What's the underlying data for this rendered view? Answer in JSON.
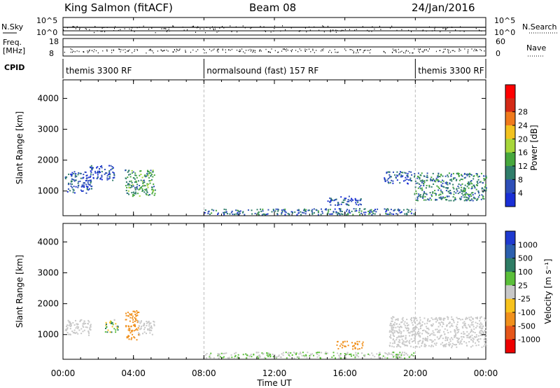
{
  "header": {
    "station": "King Salmon (fitACF)",
    "beam": "Beam 08",
    "date": "24/Jan/2016"
  },
  "strip_labels": {
    "nsky": "N.Sky",
    "freq": "Freq.",
    "freq_unit": "[MHz]",
    "cpid": "CPID",
    "nsearch": "N.Search",
    "nave": "Nave",
    "nsky_ticks": [
      "10^5",
      "10^0"
    ],
    "freq_ticks": [
      "18",
      "8"
    ],
    "nsearch_ticks": [
      "10^5",
      "10^0"
    ],
    "nave_ticks": [
      "60",
      "0"
    ]
  },
  "cpid_segments": [
    {
      "label": "themis 3300 RF",
      "start_h": 0,
      "end_h": 8
    },
    {
      "label": "normalsound (fast) 157 RF",
      "start_h": 8,
      "end_h": 20
    },
    {
      "label": "themis 3300 RF",
      "start_h": 20,
      "end_h": 24
    }
  ],
  "axes": {
    "xlabel": "Time UT",
    "x_ticks": [
      "00:00",
      "04:00",
      "08:00",
      "12:00",
      "16:00",
      "20:00",
      "00:00"
    ],
    "ylabel": "Slant Range [km]",
    "y_ticks": [
      "1000",
      "2000",
      "3000",
      "4000"
    ]
  },
  "power_colorbar": {
    "label": "Power [dB]",
    "ticks": [
      "4",
      "8",
      "12",
      "16",
      "20",
      "24",
      "28"
    ],
    "colors": [
      "#1a2fd6",
      "#2e4fb8",
      "#2f7d6a",
      "#47a83d",
      "#a7d63a",
      "#f2c21f",
      "#f07a1c",
      "#d42a16",
      "#ff0000"
    ]
  },
  "velocity_colorbar": {
    "label": "Velocity [m s⁻¹]",
    "ticks": [
      "1000",
      "500",
      "100",
      "25",
      "-25",
      "-100",
      "-500",
      "-1000"
    ],
    "colors": [
      "#1f3ad0",
      "#2b5fae",
      "#2e7c64",
      "#5bbf3a",
      "#c8c8c8",
      "#f7c21c",
      "#f0901c",
      "#e5561a",
      "#ee0000"
    ]
  },
  "chart_data": {
    "type": "heatmap",
    "xlabel": "Time UT",
    "ylabel": "Slant Range [km]",
    "xlim_hours": [
      0,
      24
    ],
    "ylim_km": [
      200,
      4600
    ],
    "panels": [
      {
        "quantity": "Power [dB]",
        "scatter_regions": [
          {
            "t_start": 0.1,
            "t_end": 1.6,
            "r_min": 950,
            "r_max": 1650,
            "value": 6
          },
          {
            "t_start": 1.5,
            "t_end": 2.9,
            "r_min": 1350,
            "r_max": 1850,
            "value": 5
          },
          {
            "t_start": 3.5,
            "t_end": 5.2,
            "r_min": 850,
            "r_max": 1700,
            "value": 12
          },
          {
            "t_start": 15.0,
            "t_end": 17.0,
            "r_min": 550,
            "r_max": 850,
            "value": 6
          },
          {
            "t_start": 18.2,
            "t_end": 19.8,
            "r_min": 1250,
            "r_max": 1650,
            "value": 6
          },
          {
            "t_start": 19.9,
            "t_end": 24.0,
            "r_min": 700,
            "r_max": 1600,
            "value": 10
          },
          {
            "t_start": 8.0,
            "t_end": 20.0,
            "r_min": 250,
            "r_max": 450,
            "value": 8
          }
        ]
      },
      {
        "quantity": "Velocity [m s⁻¹]",
        "scatter_regions": [
          {
            "t_start": 0.1,
            "t_end": 1.6,
            "r_min": 1000,
            "r_max": 1500,
            "value": 0
          },
          {
            "t_start": 2.3,
            "t_end": 3.1,
            "r_min": 1100,
            "r_max": 1500,
            "value": 60
          },
          {
            "t_start": 3.5,
            "t_end": 4.3,
            "r_min": 850,
            "r_max": 1800,
            "value": -300
          },
          {
            "t_start": 4.2,
            "t_end": 5.2,
            "r_min": 1000,
            "r_max": 1500,
            "value": 0
          },
          {
            "t_start": 15.5,
            "t_end": 17.0,
            "r_min": 550,
            "r_max": 800,
            "value": -300
          },
          {
            "t_start": 18.5,
            "t_end": 24.0,
            "r_min": 600,
            "r_max": 1600,
            "value": 0
          },
          {
            "t_start": 8.0,
            "t_end": 20.0,
            "r_min": 250,
            "r_max": 450,
            "value": 20
          }
        ]
      }
    ]
  }
}
